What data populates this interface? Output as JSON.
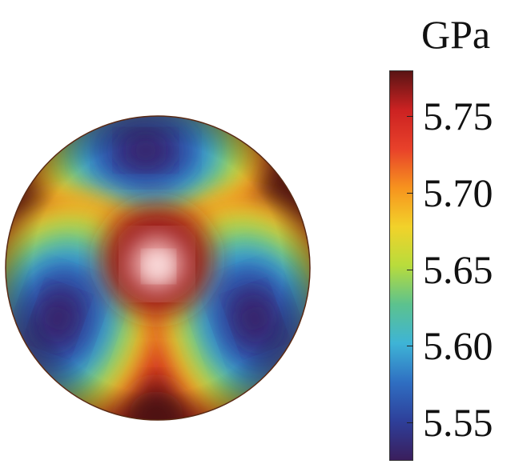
{
  "chart_data": {
    "type": "heatmap",
    "title": "",
    "subtitle": "",
    "colorbar": {
      "unit": "GPa",
      "range": [
        5.525,
        5.78
      ],
      "ticks": [
        5.55,
        5.6,
        5.65,
        5.7,
        5.75
      ],
      "tick_labels": [
        "5.55",
        "5.60",
        "5.65",
        "5.70",
        "5.75"
      ],
      "colormap": [
        "#3a1e5c",
        "#2e3f9a",
        "#2f6fc2",
        "#3eb4d6",
        "#5cc28e",
        "#b8dc3c",
        "#f2d22a",
        "#f7931e",
        "#e8412a",
        "#cc2222",
        "#5a1414"
      ]
    },
    "field": {
      "min": 5.53,
      "max": 5.78,
      "center": 5.78,
      "lobes": [
        {
          "direction": "top",
          "value": 5.53
        },
        {
          "direction": "lower-left",
          "value": 5.53
        },
        {
          "direction": "lower-right",
          "value": 5.53
        }
      ],
      "edge_patches": [
        {
          "direction": "upper-left",
          "value": 5.78
        },
        {
          "direction": "upper-right",
          "value": 5.78
        },
        {
          "direction": "bottom",
          "value": 5.78
        }
      ]
    }
  }
}
